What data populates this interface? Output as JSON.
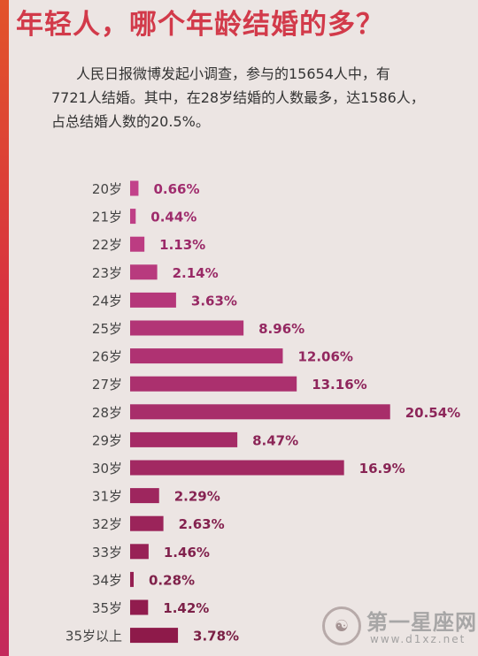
{
  "title": "年轻人，哪个年龄结婚的多？",
  "intro": {
    "line1": "人民日报微博发起小调查，参与的15654人中，有",
    "line2": "7721人结婚。其中，在28岁结婚的人数最多，达1586人，",
    "line3": "占总结婚人数的20.5%。"
  },
  "chart_data": {
    "type": "bar",
    "orientation": "horizontal",
    "categories": [
      "20岁",
      "21岁",
      "22岁",
      "23岁",
      "24岁",
      "25岁",
      "26岁",
      "27岁",
      "28岁",
      "29岁",
      "30岁",
      "31岁",
      "32岁",
      "33岁",
      "34岁",
      "35岁",
      "35岁以上"
    ],
    "values": [
      0.66,
      0.44,
      1.13,
      2.14,
      3.63,
      8.96,
      12.06,
      13.16,
      20.54,
      8.47,
      16.9,
      2.29,
      2.63,
      1.46,
      0.28,
      1.42,
      3.78
    ],
    "labels": [
      "0.66%",
      "0.44%",
      "1.13%",
      "2.14%",
      "3.63%",
      "8.96%",
      "12.06%",
      "13.16%",
      "20.54%",
      "8.47%",
      "16.9%",
      "2.29%",
      "2.63%",
      "1.46%",
      "0.28%",
      "1.42%",
      "3.78%"
    ],
    "unit": "%"
  },
  "colors": {
    "title": "#d23a4a",
    "bar_top": "#c2418a",
    "bar_bottom": "#8e1a4a",
    "label_top": "#a02c6e",
    "label_bottom": "#7a1f45",
    "category_text": "#444444"
  },
  "watermark": {
    "name": "第一星座网",
    "url": "www.d1xz.net",
    "logo_icon": "zodiac-seal-icon"
  }
}
